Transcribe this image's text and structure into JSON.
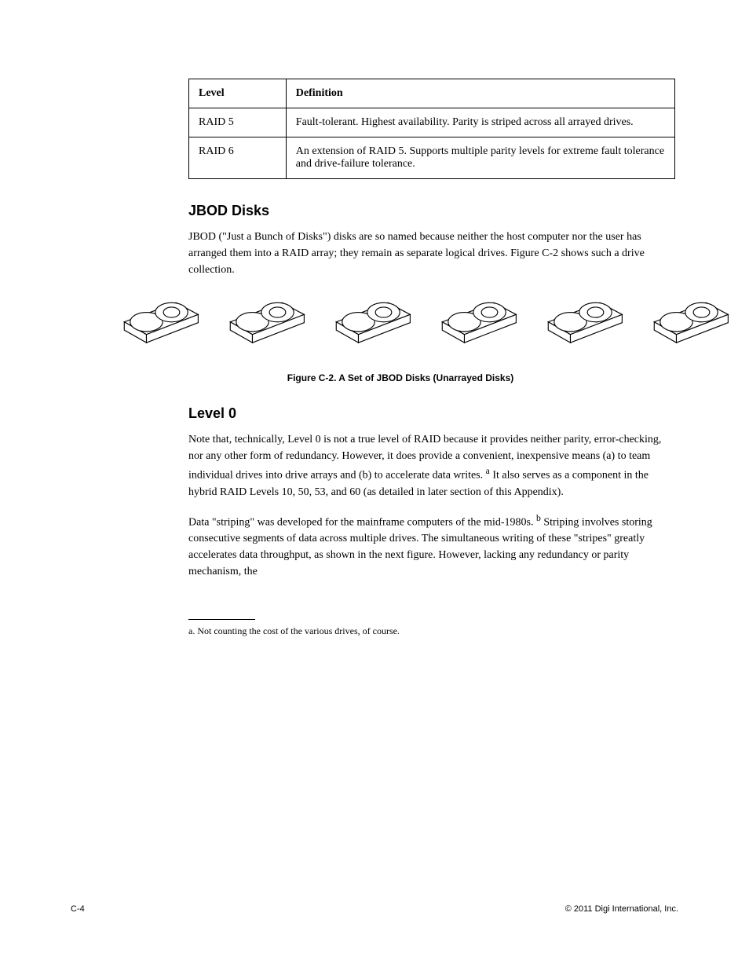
{
  "table": {
    "header_level": "Level",
    "header_desc": "Definition",
    "row1_level": "RAID 5",
    "row1_desc": "Fault-tolerant. Highest availability. Parity is striped across all arrayed drives.",
    "row2_level": "RAID 6",
    "row2_desc": "An extension of RAID 5. Supports multiple parity levels for extreme fault tolerance and drive-failure tolerance."
  },
  "jbod": {
    "heading": "JBOD Disks",
    "para": "JBOD (\"Just a Bunch of Disks\") disks are so named because neither the host computer nor the user has arranged them into a RAID array; they remain as separate logical drives. Figure C-2 shows such a drive collection."
  },
  "figure": {
    "caption_label": "Figure C-2.",
    "caption_text": "A Set of JBOD Disks (Unarrayed Disks)",
    "disk_count": 6,
    "stroke_color": "#000000",
    "stroke_width": 1.2,
    "fill_color": "#ffffff"
  },
  "level0": {
    "heading": "Level 0",
    "para1": "Note that, technically, Level 0 is not a true level of RAID because it provides neither parity, error-checking, nor any other form of redundancy. However, it does provide a convenient, inexpensive means (a) to team individual drives into drive arrays and (b) to accelerate data writes. ",
    "para1_footnote_marker": "a",
    "para1_suffix": " It also serves as a component in the hybrid RAID Levels 10, 50, 53, and 60 (as detailed in later section of this Appendix).",
    "para2": "Data \"striping\" was developed for the mainframe computers of the mid-1980s. ",
    "para2_footnote_marker": "b",
    "para2_suffix": " Striping involves storing consecutive segments of data across multiple drives. The simultaneous writing of these \"stripes\" greatly accelerates data throughput, as shown in the next figure. However, lacking any redundancy or parity mechanism, the"
  },
  "footnote": {
    "text": "a. Not counting the cost of the various drives, of course."
  },
  "footer": {
    "left": "C-4",
    "right": "© 2011 Digi International, Inc."
  }
}
